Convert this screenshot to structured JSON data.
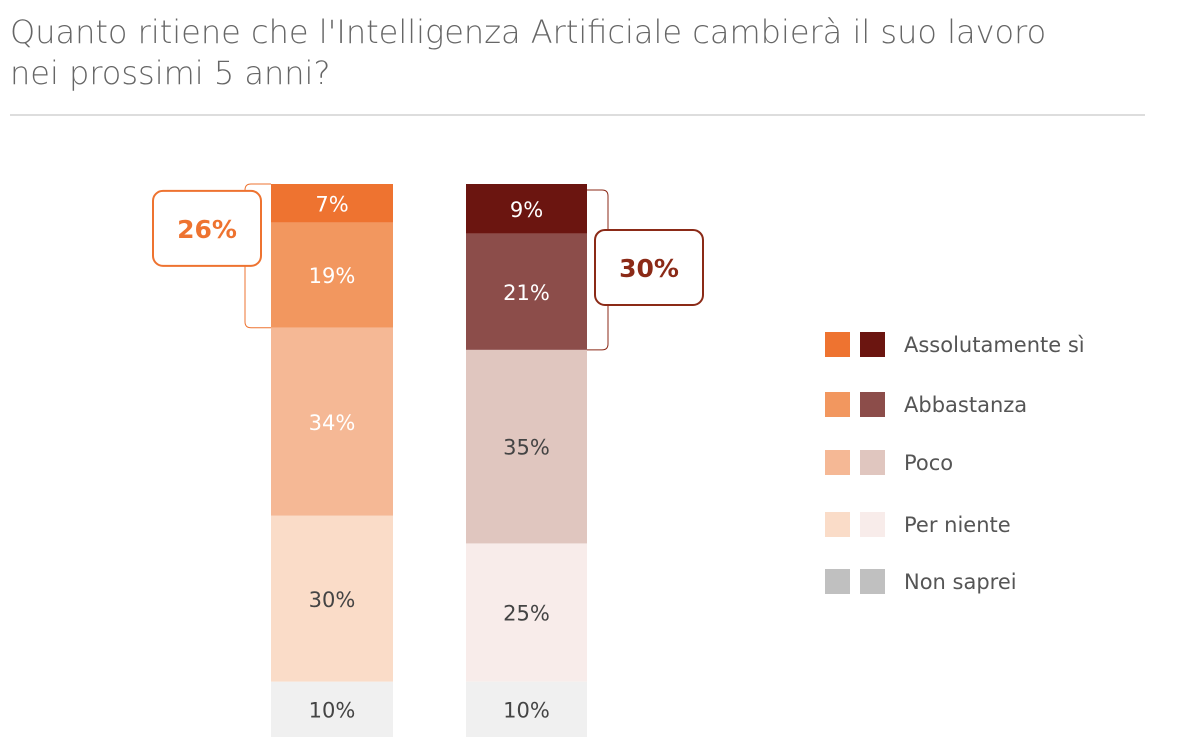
{
  "chart_data": {
    "type": "stacked_bar",
    "title": "Quanto ritiene che l'Intelligenza Artificiale cambierà il suo lavoro nei prossimi 5 anni?",
    "categories": [
      null,
      null
    ],
    "series": [
      {
        "name": "Assolutamente sì",
        "colors": [
          "#ee7330",
          "#6b1510"
        ],
        "values": [
          7,
          9
        ],
        "value_labels": [
          "7%",
          "9%"
        ]
      },
      {
        "name": "Abbastanza",
        "colors": [
          "#f2975f",
          "#8c4d4a"
        ],
        "values": [
          19,
          21
        ],
        "value_labels": [
          "19%",
          "21%"
        ]
      },
      {
        "name": "Poco",
        "colors": [
          "#f5b895",
          "#e0c6bf"
        ],
        "values": [
          34,
          35
        ],
        "value_labels": [
          "34%",
          "35%"
        ]
      },
      {
        "name": "Per niente",
        "colors": [
          "#fadcc8",
          "#f8ecea"
        ],
        "values": [
          30,
          25
        ],
        "value_labels": [
          "30%",
          "25%"
        ]
      },
      {
        "name": "Non saprei",
        "colors": [
          "#f0f0f0",
          "#f0f0f0"
        ],
        "values": [
          10,
          10
        ],
        "value_labels": [
          "10%",
          "10%"
        ]
      }
    ],
    "annotations": [
      {
        "value": 26,
        "label": "26%",
        "color": "#ee7330"
      },
      {
        "value": 30,
        "label": "30%",
        "color": "#8b2a17"
      }
    ]
  }
}
